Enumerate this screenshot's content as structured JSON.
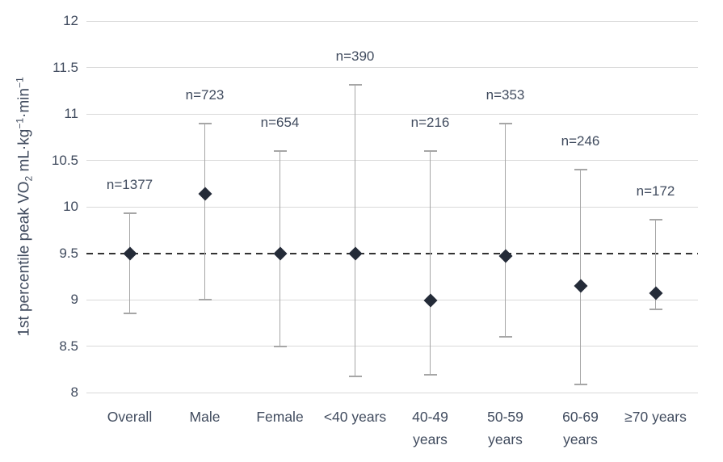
{
  "chart_data": {
    "type": "scatter",
    "title": "",
    "ylabel_plain": "1st percentile peak VO2 mL·kg-1·min-1",
    "ylabel_parts": [
      {
        "t": "1st percentile peak VO"
      },
      {
        "t": "2",
        "style": "sub"
      },
      {
        "t": " mL·kg"
      },
      {
        "t": "−1",
        "style": "sup"
      },
      {
        "t": "·min"
      },
      {
        "t": "−1",
        "style": "sup"
      }
    ],
    "xlabel": "",
    "ylim": [
      8,
      12
    ],
    "ytick_step": 0.5,
    "ytick_labels": [
      "8",
      "8.5",
      "9",
      "9.5",
      "10",
      "10.5",
      "11",
      "11.5",
      "12"
    ],
    "grid": "horizontal",
    "legend": "none",
    "reference_line": {
      "value": 9.5,
      "style": "dashed"
    },
    "categories": [
      "Overall",
      "Male",
      "Female",
      "<40 years",
      "40-49 years",
      "50-59 years",
      "60-69 years",
      "≥70 years"
    ],
    "series": [
      {
        "name": "1st percentile peak VO2 with 95% CI",
        "marker": "diamond",
        "points": [
          {
            "category": "Overall",
            "label_lines": [
              "Overall"
            ],
            "n": 1377,
            "n_label": "n=1377",
            "value": 9.5,
            "lower": 8.85,
            "upper": 9.93
          },
          {
            "category": "Male",
            "label_lines": [
              "Male"
            ],
            "n": 723,
            "n_label": "n=723",
            "value": 10.14,
            "lower": 9.0,
            "upper": 10.9
          },
          {
            "category": "Female",
            "label_lines": [
              "Female"
            ],
            "n": 654,
            "n_label": "n=654",
            "value": 9.5,
            "lower": 8.5,
            "upper": 10.6
          },
          {
            "category": "<40 years",
            "label_lines": [
              "<40 years"
            ],
            "n": 390,
            "n_label": "n=390",
            "value": 9.5,
            "lower": 8.17,
            "upper": 11.31
          },
          {
            "category": "40-49 years",
            "label_lines": [
              "40-49",
              "years"
            ],
            "n": 216,
            "n_label": "n=216",
            "value": 8.99,
            "lower": 8.19,
            "upper": 10.6
          },
          {
            "category": "50-59 years",
            "label_lines": [
              "50-59",
              "years"
            ],
            "n": 353,
            "n_label": "n=353",
            "value": 9.47,
            "lower": 8.6,
            "upper": 10.9
          },
          {
            "category": "60-69 years",
            "label_lines": [
              "60-69",
              "years"
            ],
            "n": 246,
            "n_label": "n=246",
            "value": 9.15,
            "lower": 8.09,
            "upper": 10.4
          },
          {
            "category": "≥70 years",
            "label_lines": [
              "≥70 years"
            ],
            "n": 172,
            "n_label": "n=172",
            "value": 9.07,
            "lower": 8.9,
            "upper": 9.86
          }
        ]
      }
    ]
  },
  "colors": {
    "background": "#ffffff",
    "text": "#404b5e",
    "marker": "#242b38",
    "error_bar": "#a6a6a6",
    "gridline": "#d9d9d9",
    "reference_line": "#333333"
  }
}
